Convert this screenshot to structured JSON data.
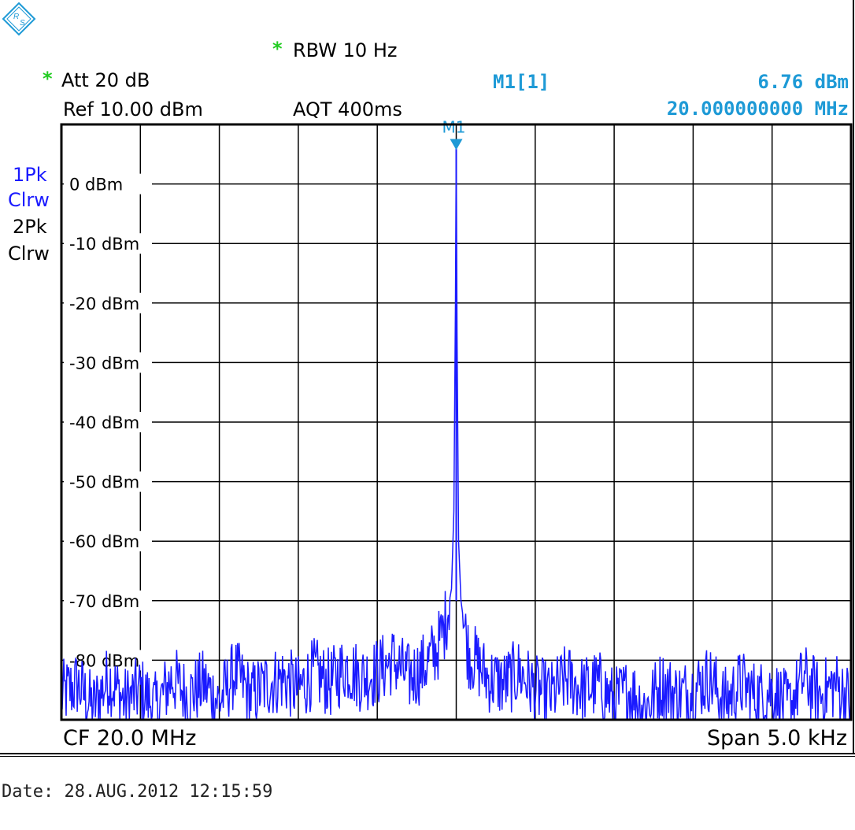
{
  "header": {
    "rbw_asterisk": "*",
    "rbw": "RBW  10 Hz",
    "att_asterisk": "*",
    "att": "Att  20 dB",
    "ref": "Ref  10.00 dBm",
    "aqt": "AQT  400ms",
    "marker_name": "M1[1]",
    "marker_level": "6.76 dBm",
    "marker_freq": "20.000000000 MHz"
  },
  "traces": {
    "t1_mode": "1Pk",
    "t1_clr": "Clrw",
    "t2_mode": "2Pk",
    "t2_clr": "Clrw"
  },
  "footer": {
    "cf": "CF 20.0 MHz",
    "span": "Span 5.0 kHz",
    "date": "Date: 28.AUG.2012  12:15:59"
  },
  "colors": {
    "trace": "#1a1aff",
    "marker": "#1e9ad6",
    "asterisk": "#22cc22",
    "grid": "#000000"
  },
  "chart_data": {
    "type": "line",
    "title": "",
    "xlabel": "",
    "ylabel": "",
    "x_center": "CF 20.0 MHz",
    "x_span": "Span 5.0 kHz",
    "xlim": [
      -2500,
      2500
    ],
    "ylim": [
      -90,
      10
    ],
    "yticks": [
      {
        "value": 0,
        "label": "0 dBm"
      },
      {
        "value": -10,
        "label": "-10 dBm"
      },
      {
        "value": -20,
        "label": "-20 dBm"
      },
      {
        "value": -30,
        "label": "-30 dBm"
      },
      {
        "value": -40,
        "label": "-40 dBm"
      },
      {
        "value": -50,
        "label": "-50 dBm"
      },
      {
        "value": -60,
        "label": "-60 dBm"
      },
      {
        "value": -70,
        "label": "-70 dBm"
      },
      {
        "value": -80,
        "label": "-80 dBm"
      }
    ],
    "grid": true,
    "x_divisions": 10,
    "marker": {
      "name": "M1",
      "x": 0,
      "y": 6.76
    },
    "noise_floor_approx": -85,
    "series": [
      {
        "x": [
          -2500,
          -2400,
          -2300,
          -2200,
          -2100,
          -2000,
          -1900,
          -1800,
          -1700,
          -1600,
          -1500,
          -1400,
          -1300,
          -1200,
          -1100,
          -1000,
          -900,
          -800,
          -700,
          -600,
          -500,
          -400,
          -300,
          -200,
          -120,
          -80,
          -50,
          -30,
          -15,
          -5,
          0,
          5,
          15,
          30,
          50,
          80,
          120,
          200,
          300,
          400,
          500,
          600,
          700,
          800,
          900,
          1000,
          1100,
          1200,
          1300,
          1400,
          1500,
          1600,
          1700,
          1800,
          1900,
          2000,
          2100,
          2200,
          2300,
          2400,
          2500
        ],
        "values": [
          -86,
          -84,
          -88,
          -83,
          -87,
          -85,
          -88,
          -83,
          -86,
          -84,
          -87,
          -82,
          -86,
          -84,
          -83,
          -85,
          -82,
          -84,
          -81,
          -83,
          -82,
          -80,
          -83,
          -81,
          -78,
          -75,
          -71,
          -68,
          -55,
          -20,
          6.76,
          -25,
          -60,
          -70,
          -74,
          -79,
          -80,
          -83,
          -84,
          -82,
          -85,
          -86,
          -83,
          -85,
          -84,
          -87,
          -85,
          -88,
          -84,
          -86,
          -85,
          -83,
          -87,
          -84,
          -86,
          -85,
          -88,
          -83,
          -86,
          -84,
          -87
        ]
      }
    ]
  }
}
